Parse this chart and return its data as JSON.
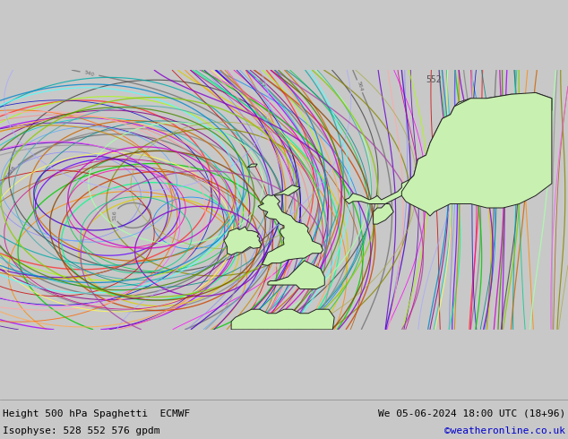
{
  "title_left": "Height 500 hPa Spaghetti  ECMWF",
  "title_right": "We 05-06-2024 18:00 UTC (18+96)",
  "subtitle_left": "Isophyse: 528 552 576 gpdm",
  "subtitle_right": "©weatheronline.co.uk",
  "background_color": "#c8c8c8",
  "land_color": "#c8f0b0",
  "sea_color": "#e0e0e0",
  "border_color": "#222222",
  "text_color": "#000000",
  "link_color": "#0000cc",
  "figsize": [
    6.34,
    4.9
  ],
  "dpi": 100,
  "extent": [
    -38,
    32,
    42,
    74
  ],
  "n_members": 51,
  "contour_levels": [
    504,
    516,
    528,
    540,
    552,
    564,
    576
  ],
  "spaghetti_levels": [
    528,
    552,
    576
  ],
  "colors_cycle": [
    "#888888",
    "#ff00ff",
    "#ff8800",
    "#0088ff",
    "#aa00ff",
    "#ddcc00",
    "#00cc44",
    "#ff3333",
    "#8888ff",
    "#ff8888",
    "#444444",
    "#00aaaa",
    "#aa5500",
    "#5500aa",
    "#aaff00",
    "#ff00aa",
    "#00cccc",
    "#ff6600",
    "#6600ff",
    "#00ff88",
    "#cc0000",
    "#0000cc",
    "#00cc00",
    "#cc6600",
    "#6600cc",
    "#888800",
    "#008888",
    "#880088",
    "#cc4400",
    "#4400cc",
    "#999999",
    "#ffaaaa",
    "#aaffaa",
    "#aaaaff",
    "#ffaa55",
    "#55aaff",
    "#ffff55",
    "#55ffff",
    "#ff55ff",
    "#aaaa44",
    "#44aaaa",
    "#aa44aa",
    "#cc8800",
    "#8800cc",
    "#00cc88",
    "#cc0088",
    "#88cc00",
    "#0088cc",
    "#884400",
    "#448800",
    "#cc00cc"
  ]
}
